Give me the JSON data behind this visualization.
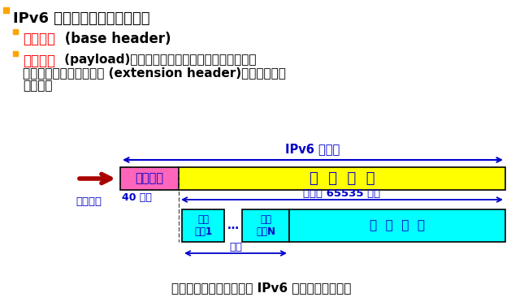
{
  "title_line": "IPv6 数据报由两大部分组成：",
  "bullet1_red": "基本首部",
  "bullet1_rest": " (base header)",
  "bullet2_red": "有效载荷",
  "bullet2_rest1": " (payload)。有效载荷也称为净负荷。有效载荷允",
  "bullet2_rest2": "许有零个或多个扩展首部 (extension header)，再后面是数",
  "bullet2_rest3": "据部分。",
  "bullet_color": "#FFA500",
  "red_color": "#FF0000",
  "blue_color": "#0000CC",
  "bg_color": "#FFFFFF",
  "pink_color": "#FF66BB",
  "yellow_color": "#FFFF00",
  "cyan_color": "#00FFFF",
  "arrow_color": "#AA0000",
  "bottom_text": "具有多个可选扩展首部的 IPv6 数据报的一般形式",
  "ipv6_label": "IPv6 数据报",
  "label_40": "40 字节",
  "label_65535": "不超过 65535 字节",
  "label_fasong": "发送在前",
  "label_jibenshoubu": "基本首部",
  "label_youxiao": "有  效  载  荷",
  "label_kuozhan1": "扩展\n首部1",
  "label_dots": "…",
  "label_kuozhanN": "扩展\n首部N",
  "label_data": "数  据  部  分",
  "label_xuanxiang": "选项"
}
